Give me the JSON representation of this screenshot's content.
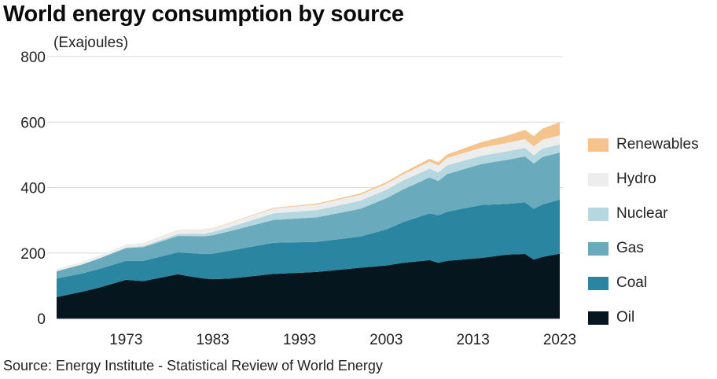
{
  "title": "World energy consumption by source",
  "unit_label": "(Exajoules)",
  "source": "Source: Energy Institute - Statistical Review of World Energy",
  "colors": {
    "Oil": "#06161f",
    "Coal": "#2a86a0",
    "Gas": "#6aaabd",
    "Nuclear": "#b5d7e0",
    "Hydro": "#ededed",
    "Renewables": "#f4c48c",
    "grid": "#d9d9d9"
  },
  "chart_data": {
    "type": "area",
    "stacked": true,
    "title": "World energy consumption by source",
    "ylabel": "(Exajoules)",
    "ylim": [
      0,
      800
    ],
    "yticks": [
      0,
      200,
      400,
      600,
      800
    ],
    "xlim": [
      1965,
      2023
    ],
    "xticks": [
      1973,
      1983,
      1993,
      2003,
      2013,
      2023
    ],
    "grid": "horizontal",
    "legend_position": "right",
    "x": [
      1965,
      1968,
      1970,
      1973,
      1975,
      1979,
      1980,
      1982,
      1983,
      1985,
      1990,
      1995,
      2000,
      2003,
      2005,
      2008,
      2009,
      2010,
      2014,
      2017,
      2019,
      2020,
      2021,
      2023
    ],
    "series": [
      {
        "name": "Oil",
        "values": [
          65,
          82,
          95,
          118,
          114,
          135,
          130,
          122,
          120,
          122,
          136,
          142,
          155,
          162,
          170,
          178,
          170,
          176,
          185,
          195,
          197,
          180,
          188,
          198
        ]
      },
      {
        "name": "Coal",
        "values": [
          57,
          56,
          57,
          58,
          62,
          67,
          70,
          75,
          78,
          85,
          95,
          92,
          95,
          110,
          125,
          143,
          145,
          150,
          162,
          155,
          158,
          155,
          160,
          165
        ]
      },
      {
        "name": "Gas",
        "values": [
          22,
          27,
          32,
          39,
          42,
          50,
          52,
          54,
          56,
          60,
          70,
          75,
          85,
          95,
          100,
          110,
          105,
          115,
          125,
          135,
          140,
          138,
          145,
          144
        ]
      },
      {
        "name": "Nuclear",
        "values": [
          1,
          1,
          1,
          2,
          3,
          6,
          7,
          8,
          10,
          12,
          20,
          22,
          25,
          26,
          27,
          27,
          26,
          27,
          25,
          26,
          26,
          25,
          26,
          25
        ]
      },
      {
        "name": "Hydro",
        "values": [
          6,
          7,
          8,
          9,
          10,
          11,
          11,
          12,
          12,
          13,
          15,
          17,
          18,
          18,
          19,
          21,
          21,
          22,
          25,
          26,
          27,
          28,
          27,
          27
        ]
      },
      {
        "name": "Renewables",
        "values": [
          0,
          0,
          0,
          0,
          0,
          1,
          1,
          1,
          1,
          1,
          2,
          3,
          4,
          5,
          6,
          9,
          10,
          11,
          17,
          22,
          28,
          31,
          34,
          41
        ]
      }
    ]
  },
  "legend": [
    "Renewables",
    "Hydro",
    "Nuclear",
    "Gas",
    "Coal",
    "Oil"
  ]
}
